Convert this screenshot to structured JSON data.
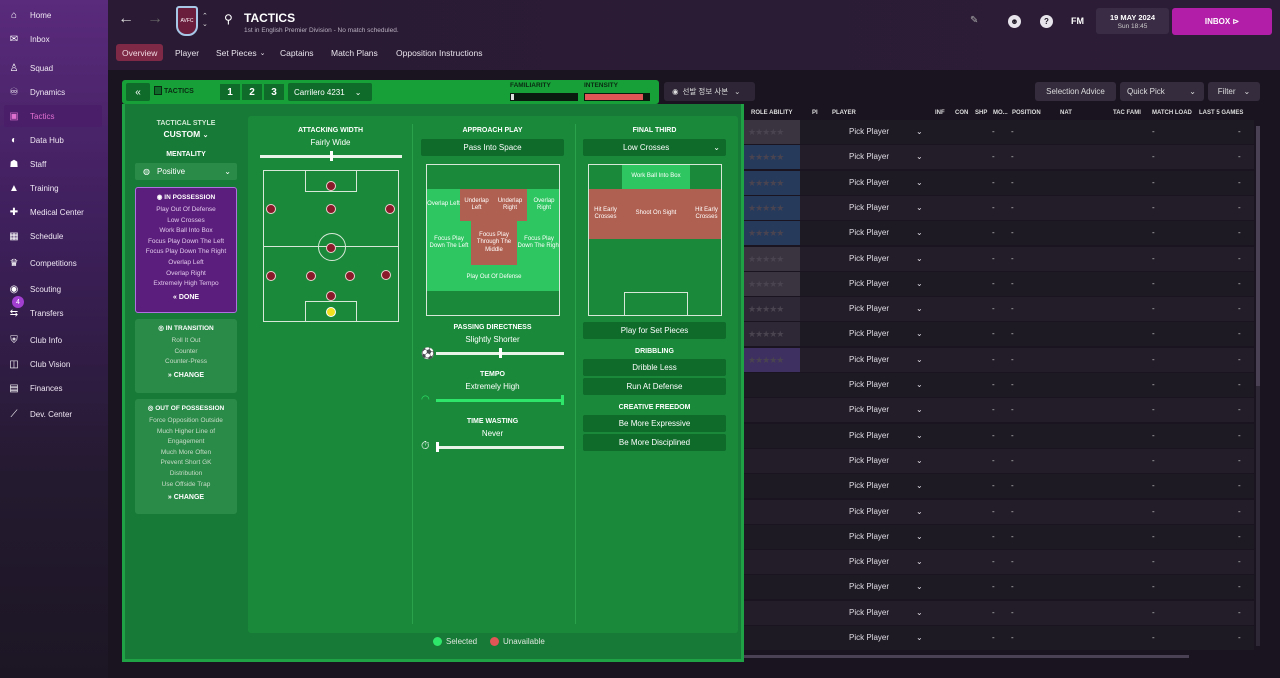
{
  "sidebar": {
    "items": [
      {
        "label": "Home",
        "icon": "home-icon"
      },
      {
        "label": "Inbox",
        "icon": "inbox-icon"
      },
      {
        "label": "Squad",
        "icon": "shirt-icon"
      },
      {
        "label": "Dynamics",
        "icon": "dynamics-icon"
      },
      {
        "label": "Tactics",
        "icon": "tactics-icon"
      },
      {
        "label": "Data Hub",
        "icon": "data-hub-icon"
      },
      {
        "label": "Staff",
        "icon": "staff-icon"
      },
      {
        "label": "Training",
        "icon": "training-icon"
      },
      {
        "label": "Medical Center",
        "icon": "medical-icon"
      },
      {
        "label": "Schedule",
        "icon": "calendar-icon"
      },
      {
        "label": "Competitions",
        "icon": "trophy-icon"
      },
      {
        "label": "Scouting",
        "icon": "scouting-icon"
      },
      {
        "label": "Transfers",
        "icon": "transfers-icon",
        "badge": "4"
      },
      {
        "label": "Club Info",
        "icon": "shield-icon"
      },
      {
        "label": "Club Vision",
        "icon": "vision-icon"
      },
      {
        "label": "Finances",
        "icon": "finances-icon"
      },
      {
        "label": "Dev. Center",
        "icon": "dev-center-icon"
      }
    ]
  },
  "header": {
    "title": "TACTICS",
    "subtitle": "1st in English Premier Division - No match scheduled.",
    "crest_text": "AVFC",
    "date": "19 MAY 2024",
    "time": "Sun 18:45",
    "fm_label": "FM",
    "inbox_label": "INBOX"
  },
  "tabs": [
    "Overview",
    "Player",
    "Set Pieces",
    "Captains",
    "Match Plans",
    "Opposition Instructions"
  ],
  "tactics_bar": {
    "label": "TACTICS",
    "slots": [
      "1",
      "2",
      "3"
    ],
    "formation": "Carrilero 4231",
    "familiarity_label": "FAMILIARITY",
    "intensity_label": "INTENSITY",
    "familiarity_level": 0.05,
    "intensity_level": 0.9
  },
  "view_button": "선발 정보 사본",
  "top_buttons": {
    "selection_advice": "Selection Advice",
    "quick_pick": "Quick Pick",
    "filter": "Filter"
  },
  "left": {
    "tactical_style_label": "TACTICAL STYLE",
    "tactical_style": "CUSTOM",
    "mentality_label": "MENTALITY",
    "mentality": "Positive",
    "in_possession": {
      "title": "IN POSSESSION",
      "items": [
        "Play Out Of Defense",
        "Low Crosses",
        "Work Ball Into Box",
        "Focus Play Down The Left",
        "Focus Play Down The Right",
        "Overlap Left",
        "Overlap Right",
        "Extremely High Tempo"
      ],
      "button": "DONE"
    },
    "in_transition": {
      "title": "IN TRANSITION",
      "items": [
        "Roll It Out",
        "Counter",
        "Counter-Press"
      ],
      "button": "CHANGE"
    },
    "out_of_possession": {
      "title": "OUT OF POSSESSION",
      "items": [
        "Force Opposition Outside",
        "Much Higher Line of",
        "Engagement",
        "Much More Often",
        "Prevent Short GK",
        "Distribution",
        "Use Offside Trap"
      ],
      "button": "CHANGE"
    }
  },
  "attacking": {
    "width_label": "ATTACKING WIDTH",
    "width_value": "Fairly Wide",
    "width_level": 0.5
  },
  "approach": {
    "label": "APPROACH PLAY",
    "value": "Pass Into Space",
    "zones": [
      "Overlap Left",
      "Underlap Left",
      "Underlap Right",
      "Overlap Right",
      "Focus Play Down The Left",
      "Focus Play Through The Middle",
      "Focus Play Down The Right",
      "Play Out Of Defense"
    ],
    "passing_label": "PASSING DIRECTNESS",
    "passing_value": "Slightly Shorter",
    "passing_level": 0.5,
    "tempo_label": "TEMPO",
    "tempo_value": "Extremely High",
    "tempo_level": 1.0,
    "time_wasting_label": "TIME WASTING",
    "time_wasting_value": "Never",
    "time_wasting_level": 0.0
  },
  "final_third": {
    "label": "FINAL THIRD",
    "value": "Low Crosses",
    "zones": [
      "Work Ball Into Box",
      "Hit Early Crosses",
      "Shoot On Sight",
      "Hit Early Crosses"
    ],
    "set_pieces": "Play for Set Pieces",
    "dribbling_label": "DRIBBLING",
    "dribble_less": "Dribble Less",
    "run_at_defense": "Run At Defense",
    "creative_label": "CREATIVE FREEDOM",
    "be_more_expressive": "Be More Expressive",
    "be_more_disciplined": "Be More Disciplined"
  },
  "legend": {
    "selected": "Selected",
    "unavailable": "Unavailable",
    "selected_color": "#2ee66a",
    "unavailable_color": "#e05555"
  },
  "table": {
    "headers": [
      "ROLE ABILITY",
      "PI",
      "PLAYER",
      "INF",
      "CON",
      "SHP",
      "MO...",
      "POSITION",
      "NAT",
      "TAC FAMI",
      "MATCH LOAD",
      "LAST 5 GAMES"
    ],
    "pick_label": "Pick Player",
    "dash": "-",
    "row_count": 21
  }
}
